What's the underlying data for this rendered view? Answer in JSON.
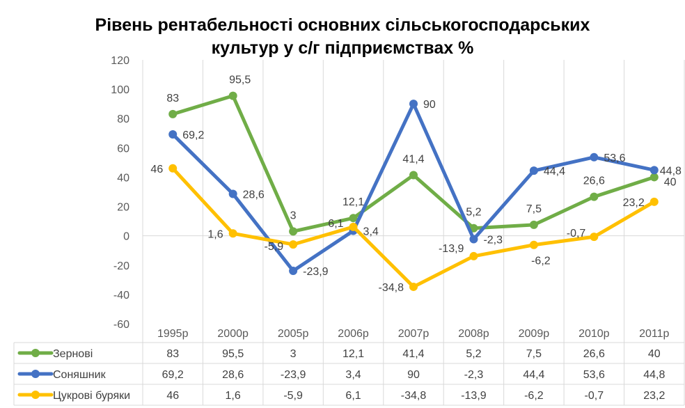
{
  "chart_data": {
    "type": "line",
    "title_line1": "Рівень рентабельності основних  сільськогосподарських",
    "title_line2": "культур у с/г підприємствах %",
    "categories": [
      "1995р",
      "2000р",
      "2005р",
      "2006р",
      "2007р",
      "2008р",
      "2009р",
      "2010р",
      "2011р"
    ],
    "ylim": [
      -60,
      120
    ],
    "yticks": [
      -60,
      -40,
      -20,
      0,
      20,
      40,
      60,
      80,
      100,
      120
    ],
    "grid": "vertical",
    "legend": "data-table-left",
    "series": [
      {
        "name": "Зернові",
        "color": "#70ad47",
        "values": [
          83,
          95.5,
          3,
          12.1,
          41.4,
          5.2,
          7.5,
          26.6,
          40
        ],
        "labels": [
          "83",
          "95,5",
          "3",
          "12,1",
          "41,4",
          "5,2",
          "7,5",
          "26,6",
          "40"
        ]
      },
      {
        "name": "Соняшник",
        "color": "#4472c4",
        "values": [
          69.2,
          28.6,
          -23.9,
          3.4,
          90,
          -2.3,
          44.4,
          53.6,
          44.8
        ],
        "labels": [
          "69,2",
          "28,6",
          "-23,9",
          "3,4",
          "90",
          "-2,3",
          "44,4",
          "53,6",
          "44,8"
        ]
      },
      {
        "name": "Цукрові буряки",
        "color": "#ffc000",
        "values": [
          46,
          1.6,
          -5.9,
          6.1,
          -34.8,
          -13.9,
          -6.2,
          -0.7,
          23.2
        ],
        "labels": [
          "46",
          "1,6",
          "-5,9",
          "6,1",
          "-34,8",
          "-13,9",
          "-6,2",
          "-0,7",
          "23,2"
        ]
      }
    ]
  }
}
